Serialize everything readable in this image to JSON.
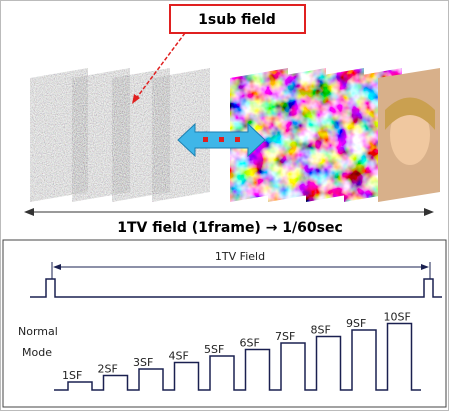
{
  "callout": "1sub field",
  "frame_caption": "1TV field (1frame) → 1/60sec",
  "timing": {
    "field_label": "1TV Field",
    "mode_label": [
      "Normal",
      "Mode"
    ],
    "subfields": [
      "1SF",
      "2SF",
      "3SF",
      "4SF",
      "5SF",
      "6SF",
      "7SF",
      "8SF",
      "9SF",
      "10SF"
    ]
  }
}
